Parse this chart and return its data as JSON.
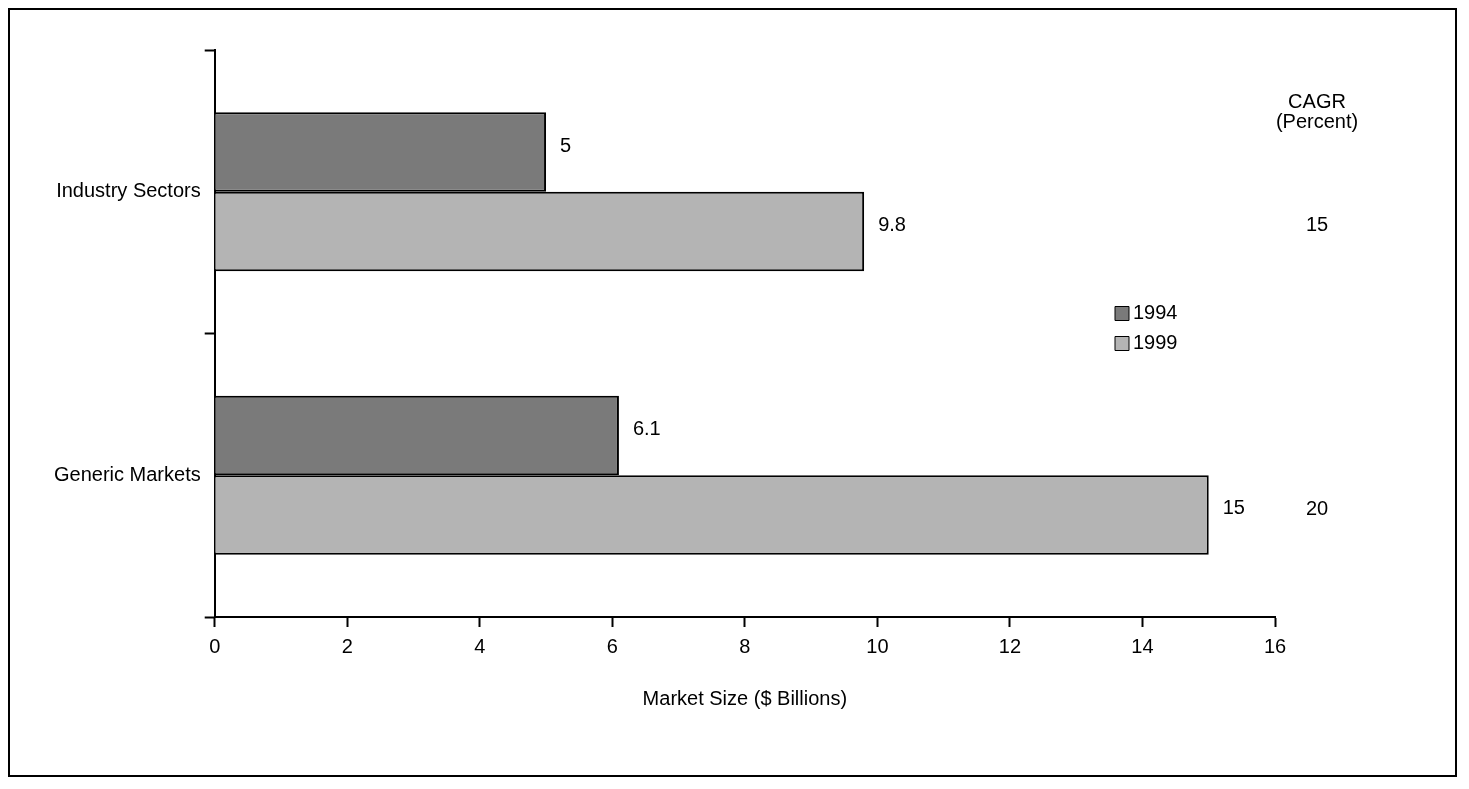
{
  "chart_data": {
    "type": "bar",
    "orientation": "horizontal",
    "categories": [
      "Industry Sectors",
      "Generic Markets"
    ],
    "series": [
      {
        "name": "1994",
        "color": "#7a7a7a",
        "values": [
          5,
          6.1
        ]
      },
      {
        "name": "1999",
        "color": "#b4b4b4",
        "values": [
          9.8,
          15
        ]
      }
    ],
    "xlabel": "Market Size ($ Billions)",
    "xlim": [
      0,
      16
    ],
    "xticks": [
      0,
      2,
      4,
      6,
      8,
      10,
      12,
      14,
      16
    ],
    "data_labels": true,
    "grid": false,
    "legend": "right",
    "annotations": [
      "CAGR\n(Percent)",
      "15",
      "20"
    ]
  }
}
